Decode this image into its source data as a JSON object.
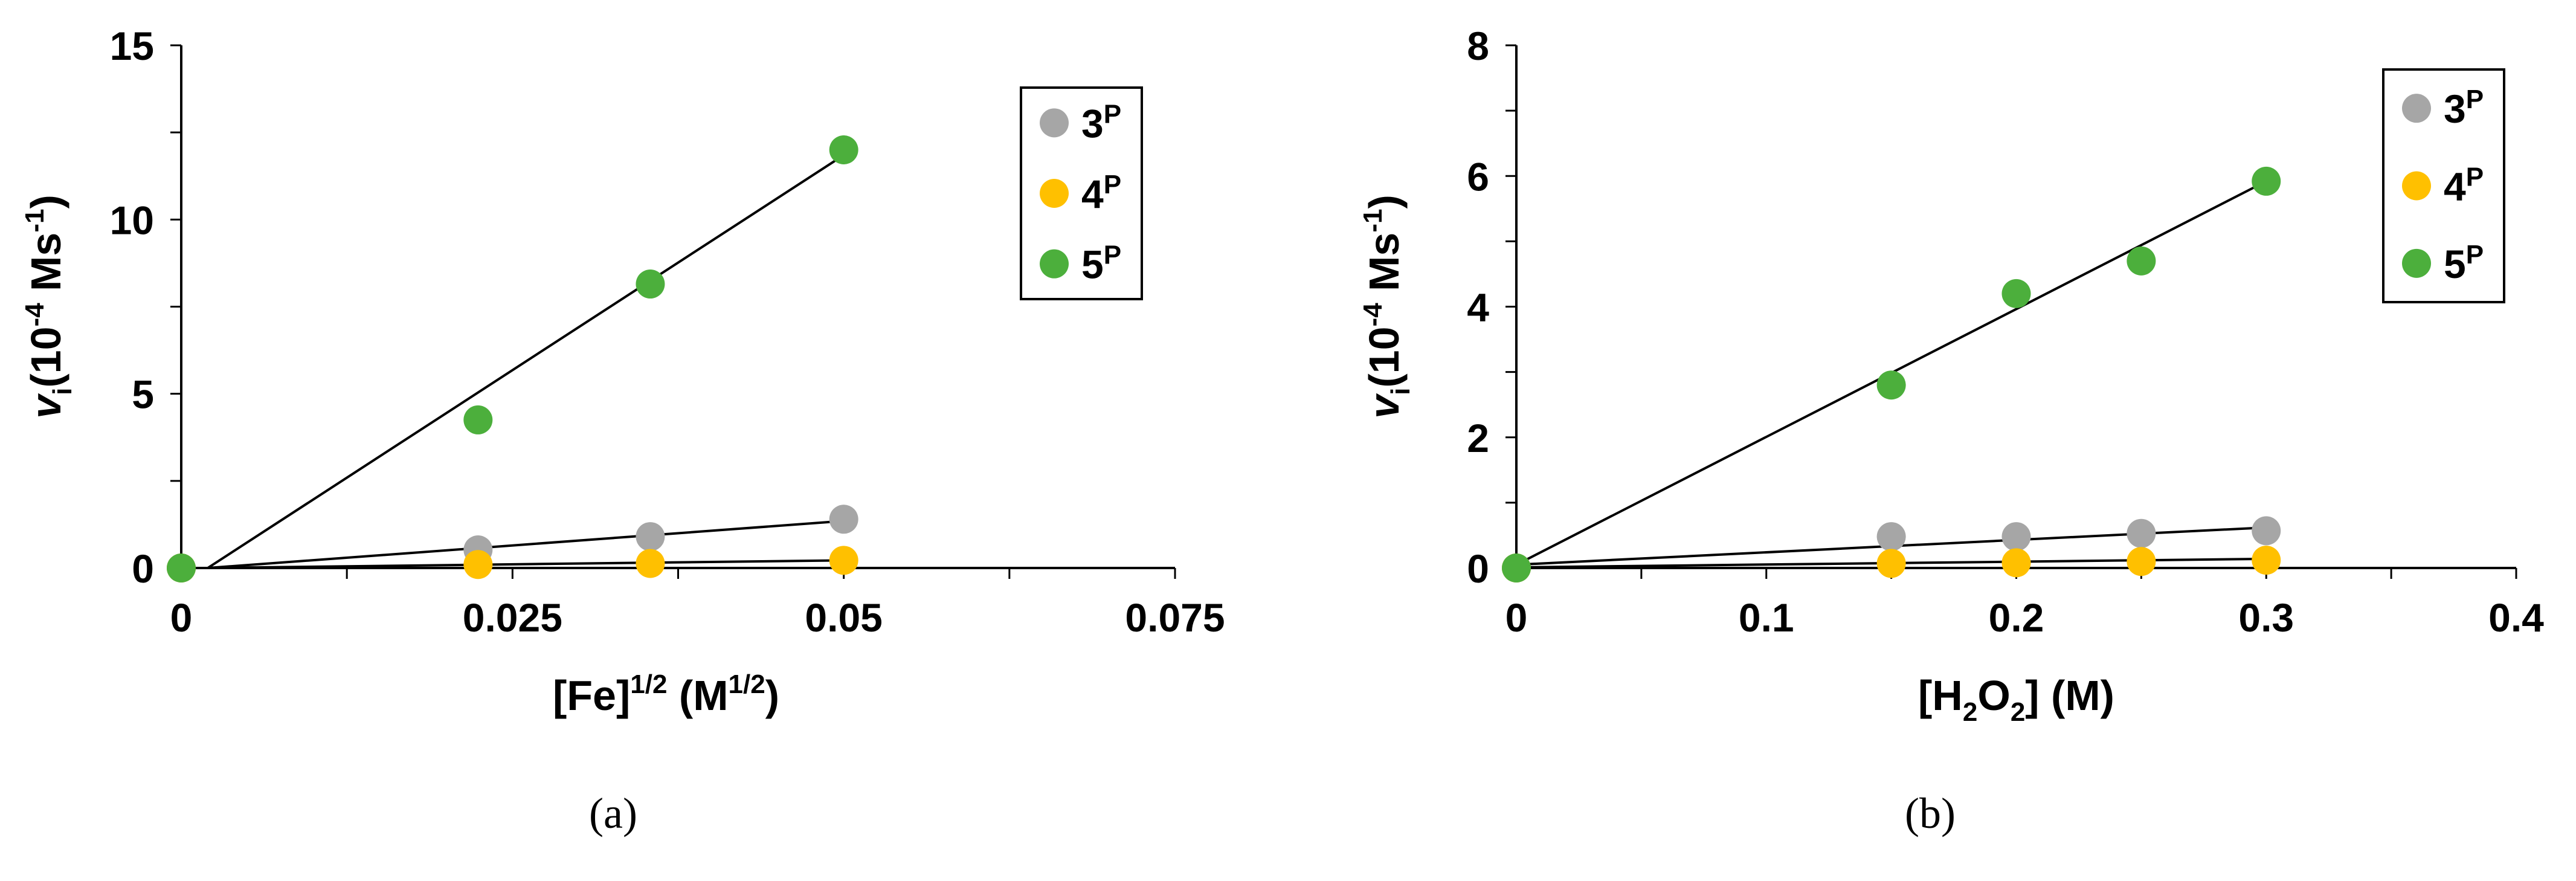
{
  "chart_data": [
    {
      "type": "scatter",
      "panel_label": "(a)",
      "xlabel": {
        "base": "[Fe]",
        "sup": "1/2",
        "rest": " (M",
        "unit_sup": "1/2",
        "close": ")"
      },
      "ylabel": {
        "v": "v",
        "sub": "i",
        "rest": "(10",
        "sup1": "-4",
        "mid": " Ms",
        "sup2": "-1",
        "close": ")"
      },
      "xlim": [
        0,
        0.075
      ],
      "ylim": [
        0,
        15
      ],
      "xticks": [
        0,
        0.025,
        0.05,
        0.075
      ],
      "xtick_labels": [
        "0",
        "0.025",
        "0.05",
        "0.075"
      ],
      "xminor_step": 0.0125,
      "yticks": [
        0,
        5,
        10,
        15
      ],
      "ytick_labels": [
        "0",
        "5",
        "10",
        "15"
      ],
      "yminor_step": 2.5,
      "grid": false,
      "legend_position": "top-right",
      "series": [
        {
          "name": "3",
          "name_sup": "P",
          "color": "#a6a6a6",
          "x": [
            0,
            0.0224,
            0.0354,
            0.05
          ],
          "y": [
            0,
            0.52,
            0.9,
            1.4
          ],
          "fit": {
            "x": [
              0.002,
              0.05
            ],
            "y": [
              0,
              1.35
            ]
          }
        },
        {
          "name": "4",
          "name_sup": "P",
          "color": "#ffc000",
          "x": [
            0,
            0.0224,
            0.0354,
            0.05
          ],
          "y": [
            0,
            0.1,
            0.13,
            0.22
          ],
          "fit": {
            "x": [
              0.002,
              0.05
            ],
            "y": [
              0,
              0.22
            ]
          }
        },
        {
          "name": "5",
          "name_sup": "P",
          "color": "#4caf3c",
          "x": [
            0,
            0.0224,
            0.0354,
            0.05
          ],
          "y": [
            0,
            4.25,
            8.15,
            12.0
          ],
          "fit": {
            "x": [
              0.002,
              0.05
            ],
            "y": [
              0,
              11.85
            ]
          }
        }
      ]
    },
    {
      "type": "scatter",
      "panel_label": "(b)",
      "xlabel": {
        "open": "[H",
        "sub": "2",
        "mid": "O",
        "sub2": "2",
        "close": "] (M)"
      },
      "ylabel": {
        "v": "v",
        "sub": "i",
        "rest": "(10",
        "sup1": "-4",
        "mid": " Ms",
        "sup2": "-1",
        "close": ")"
      },
      "xlim": [
        0,
        0.4
      ],
      "ylim": [
        0,
        8
      ],
      "xticks": [
        0,
        0.1,
        0.2,
        0.3,
        0.4
      ],
      "xtick_labels": [
        "0",
        "0.1",
        "0.2",
        "0.3",
        "0.4"
      ],
      "xminor_step": 0.05,
      "yticks": [
        0,
        2,
        4,
        6,
        8
      ],
      "ytick_labels": [
        "0",
        "2",
        "4",
        "6",
        "8"
      ],
      "yminor_step": 1,
      "grid": false,
      "legend_position": "top-right",
      "series": [
        {
          "name": "3",
          "name_sup": "P",
          "color": "#a6a6a6",
          "x": [
            0,
            0.15,
            0.2,
            0.25,
            0.3
          ],
          "y": [
            0,
            0.48,
            0.48,
            0.53,
            0.57
          ],
          "fit": {
            "x": [
              0,
              0.3
            ],
            "y": [
              0.05,
              0.62
            ]
          }
        },
        {
          "name": "4",
          "name_sup": "P",
          "color": "#ffc000",
          "x": [
            0,
            0.15,
            0.2,
            0.25,
            0.3
          ],
          "y": [
            0,
            0.07,
            0.08,
            0.1,
            0.12
          ],
          "fit": {
            "x": [
              0,
              0.3
            ],
            "y": [
              0.01,
              0.14
            ]
          }
        },
        {
          "name": "5",
          "name_sup": "P",
          "color": "#4caf3c",
          "x": [
            0,
            0.15,
            0.2,
            0.25,
            0.3
          ],
          "y": [
            0,
            2.8,
            4.2,
            4.7,
            5.92
          ],
          "fit": {
            "x": [
              0,
              0.3
            ],
            "y": [
              0.05,
              5.92
            ]
          }
        }
      ]
    }
  ]
}
